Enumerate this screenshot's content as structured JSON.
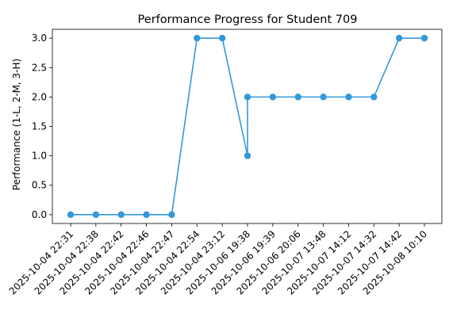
{
  "chart_data": {
    "type": "line",
    "title": "Performance Progress for Student 709",
    "xlabel": "",
    "ylabel": "Performance (1-L, 2-M, 3-H)",
    "ylim": [
      -0.15,
      3.15
    ],
    "yticks": [
      "0.0",
      "0.5",
      "1.0",
      "1.5",
      "2.0",
      "2.5",
      "3.0"
    ],
    "x_tick_labels": [
      "2025-10-04 22:31",
      "2025-10-04 22:38",
      "2025-10-04 22:42",
      "2025-10-04 22:46",
      "2025-10-04 22:47",
      "2025-10-04 22:54",
      "2025-10-04 23:12",
      "2025-10-06 19:38",
      "2025-10-06 19:39",
      "2025-10-06 20:06",
      "2025-10-07 13:48",
      "2025-10-07 14:12",
      "2025-10-07 14:32",
      "2025-10-07 14:42",
      "2025-10-08 10:10"
    ],
    "points": [
      {
        "x": "2025-10-04 22:31",
        "y": 0
      },
      {
        "x": "2025-10-04 22:38",
        "y": 0
      },
      {
        "x": "2025-10-04 22:42",
        "y": 0
      },
      {
        "x": "2025-10-04 22:46",
        "y": 0
      },
      {
        "x": "2025-10-04 22:47",
        "y": 0
      },
      {
        "x": "2025-10-04 22:54",
        "y": 3
      },
      {
        "x": "2025-10-04 23:12",
        "y": 3
      },
      {
        "x": "2025-10-06 19:38",
        "y": 1
      },
      {
        "x": "2025-10-06 19:38",
        "y": 2
      },
      {
        "x": "2025-10-06 19:39",
        "y": 2
      },
      {
        "x": "2025-10-06 20:06",
        "y": 2
      },
      {
        "x": "2025-10-07 13:48",
        "y": 2
      },
      {
        "x": "2025-10-07 14:12",
        "y": 2
      },
      {
        "x": "2025-10-07 14:32",
        "y": 2
      },
      {
        "x": "2025-10-07 14:42",
        "y": 3
      },
      {
        "x": "2025-10-08 10:10",
        "y": 3
      }
    ],
    "series_color": "#3498db",
    "grid": false,
    "legend": "none"
  }
}
